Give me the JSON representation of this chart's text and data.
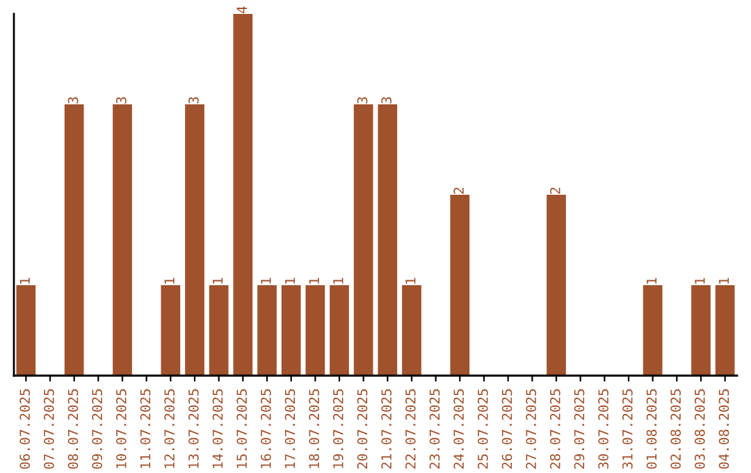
{
  "chart_data": {
    "type": "bar",
    "categories": [
      "06.07.2025",
      "07.07.2025",
      "08.07.2025",
      "09.07.2025",
      "10.07.2025",
      "11.07.2025",
      "12.07.2025",
      "13.07.2025",
      "14.07.2025",
      "15.07.2025",
      "16.07.2025",
      "17.07.2025",
      "18.07.2025",
      "19.07.2025",
      "20.07.2025",
      "21.07.2025",
      "22.07.2025",
      "23.07.2025",
      "24.07.2025",
      "25.07.2025",
      "26.07.2025",
      "27.07.2025",
      "28.07.2025",
      "29.07.2025",
      "30.07.2025",
      "31.07.2025",
      "01.08.2025",
      "02.08.2025",
      "03.08.2025",
      "04.08.2025"
    ],
    "values": [
      1,
      0,
      3,
      0,
      3,
      0,
      1,
      3,
      1,
      4,
      1,
      1,
      1,
      1,
      3,
      3,
      1,
      0,
      2,
      0,
      0,
      0,
      2,
      0,
      0,
      0,
      1,
      0,
      1,
      1
    ],
    "value_labels": [
      "1",
      null,
      "3",
      null,
      "3",
      null,
      "1",
      "3",
      "1",
      "4",
      "1",
      "1",
      "1",
      "1",
      "3",
      "3",
      "1",
      null,
      "2",
      null,
      null,
      null,
      "2",
      null,
      null,
      null,
      "1",
      null,
      "1",
      "1"
    ],
    "color": "#a0522d",
    "tick_labels": "x",
    "grid": false,
    "legend": false
  }
}
